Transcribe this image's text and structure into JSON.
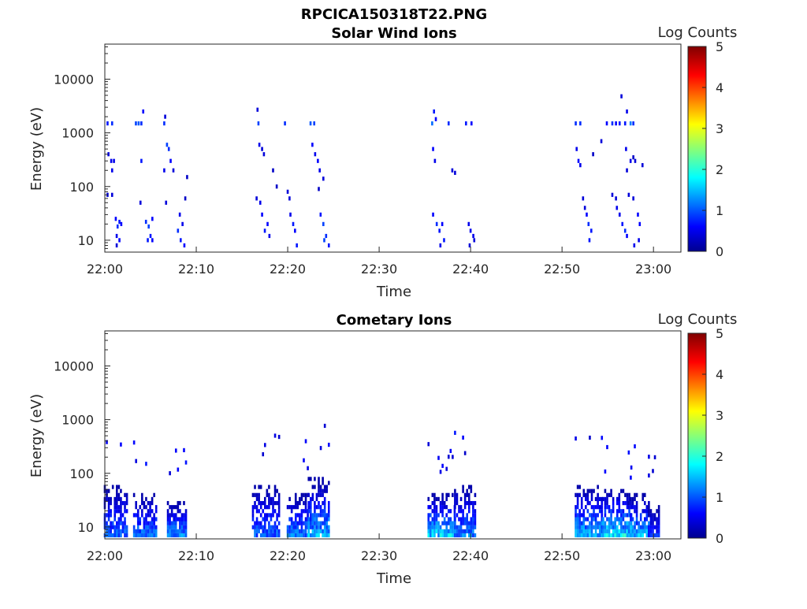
{
  "figure": {
    "filename": "RPCICA150318T22.PNG"
  },
  "chart_data": [
    {
      "type": "heatmap",
      "title": "Solar Wind Ions",
      "xlabel": "Time",
      "ylabel": "Energy (eV)",
      "x_ticks": [
        "22:00",
        "22:10",
        "22:20",
        "22:30",
        "22:40",
        "22:50",
        "23:00"
      ],
      "x_range_minutes": [
        0,
        63
      ],
      "y_ticks": [
        "10",
        "100",
        "1000",
        "10000"
      ],
      "y_scale": "log",
      "y_range": [
        6,
        45000
      ],
      "colorbar": {
        "label": "Log Counts",
        "ticks": [
          "0",
          "1",
          "2",
          "3",
          "4",
          "5"
        ],
        "range": [
          0,
          5
        ],
        "colormap": "jet"
      },
      "data_note_units": "[time (minutes after 22:00), energy (eV), log counts]",
      "points": [
        [
          0.3,
          1500,
          0.7
        ],
        [
          0.8,
          1500,
          0.8
        ],
        [
          0.4,
          400,
          0.4
        ],
        [
          0.7,
          300,
          0.5
        ],
        [
          0.8,
          200,
          0.5
        ],
        [
          0.3,
          70,
          0.4
        ],
        [
          0.8,
          70,
          0.4
        ],
        [
          1.0,
          300,
          0.5
        ],
        [
          1.2,
          25,
          0.6
        ],
        [
          1.4,
          18,
          0.8
        ],
        [
          1.6,
          22,
          0.7
        ],
        [
          1.8,
          20,
          0.6
        ],
        [
          1.3,
          12,
          0.5
        ],
        [
          1.6,
          10,
          0.6
        ],
        [
          1.3,
          8,
          0.4
        ],
        [
          3.4,
          1500,
          0.9
        ],
        [
          3.7,
          1500,
          1.0
        ],
        [
          4.0,
          1500,
          0.8
        ],
        [
          4.2,
          2500,
          0.6
        ],
        [
          4.0,
          300,
          0.7
        ],
        [
          3.9,
          50,
          0.4
        ],
        [
          4.5,
          22,
          0.8
        ],
        [
          4.8,
          18,
          0.9
        ],
        [
          5.0,
          12,
          0.7
        ],
        [
          5.2,
          25,
          0.6
        ],
        [
          4.7,
          10,
          0.7
        ],
        [
          5.2,
          10,
          0.6
        ],
        [
          6.5,
          1500,
          0.8
        ],
        [
          6.6,
          2000,
          0.4
        ],
        [
          6.8,
          600,
          0.9
        ],
        [
          7.0,
          500,
          0.8
        ],
        [
          7.2,
          300,
          0.6
        ],
        [
          6.5,
          200,
          0.5
        ],
        [
          7.5,
          200,
          0.4
        ],
        [
          6.7,
          50,
          0.4
        ],
        [
          8.2,
          30,
          0.5
        ],
        [
          8.0,
          15,
          0.8
        ],
        [
          8.3,
          10,
          0.7
        ],
        [
          8.5,
          20,
          0.5
        ],
        [
          8.7,
          8,
          0.6
        ],
        [
          8.8,
          60,
          0.3
        ],
        [
          9.0,
          150,
          0.3
        ],
        [
          16.7,
          2700,
          0.4
        ],
        [
          16.8,
          1500,
          0.9
        ],
        [
          16.9,
          600,
          0.5
        ],
        [
          17.2,
          500,
          0.4
        ],
        [
          17.4,
          400,
          0.4
        ],
        [
          16.6,
          60,
          0.4
        ],
        [
          17.0,
          50,
          0.5
        ],
        [
          17.2,
          30,
          0.6
        ],
        [
          17.5,
          15,
          0.7
        ],
        [
          17.8,
          20,
          0.6
        ],
        [
          18.0,
          12,
          0.5
        ],
        [
          18.4,
          200,
          0.3
        ],
        [
          18.8,
          100,
          0.3
        ],
        [
          19.7,
          1500,
          0.8
        ],
        [
          20.0,
          80,
          0.4
        ],
        [
          20.2,
          60,
          0.4
        ],
        [
          20.3,
          30,
          0.5
        ],
        [
          20.6,
          20,
          0.7
        ],
        [
          20.8,
          15,
          0.6
        ],
        [
          21.0,
          8,
          0.7
        ],
        [
          22.5,
          1500,
          1.0
        ],
        [
          22.9,
          1500,
          0.9
        ],
        [
          22.7,
          600,
          0.6
        ],
        [
          23.0,
          400,
          0.5
        ],
        [
          23.3,
          300,
          0.6
        ],
        [
          23.5,
          200,
          0.5
        ],
        [
          23.9,
          140,
          0.4
        ],
        [
          23.4,
          90,
          0.3
        ],
        [
          23.6,
          30,
          0.7
        ],
        [
          23.9,
          20,
          0.9
        ],
        [
          24.2,
          12,
          0.8
        ],
        [
          24.5,
          8,
          0.7
        ],
        [
          24.0,
          10,
          0.9
        ],
        [
          35.8,
          1500,
          1.1
        ],
        [
          36.0,
          2500,
          0.7
        ],
        [
          36.2,
          1800,
          0.6
        ],
        [
          35.9,
          500,
          0.6
        ],
        [
          36.1,
          300,
          0.5
        ],
        [
          35.9,
          30,
          0.6
        ],
        [
          36.3,
          20,
          0.8
        ],
        [
          36.6,
          15,
          0.7
        ],
        [
          36.9,
          20,
          0.6
        ],
        [
          37.1,
          10,
          0.7
        ],
        [
          36.7,
          8,
          0.5
        ],
        [
          37.6,
          1500,
          0.8
        ],
        [
          38.0,
          200,
          0.4
        ],
        [
          38.3,
          180,
          0.4
        ],
        [
          39.5,
          1500,
          0.7
        ],
        [
          40.1,
          1500,
          0.6
        ],
        [
          39.8,
          20,
          0.5
        ],
        [
          40.0,
          15,
          0.5
        ],
        [
          40.3,
          12,
          0.5
        ],
        [
          39.9,
          8,
          0.4
        ],
        [
          40.4,
          10,
          0.4
        ],
        [
          51.5,
          1500,
          0.8
        ],
        [
          52.0,
          1500,
          0.8
        ],
        [
          51.6,
          500,
          0.5
        ],
        [
          51.8,
          300,
          0.6
        ],
        [
          52.0,
          250,
          0.5
        ],
        [
          52.3,
          60,
          0.4
        ],
        [
          52.5,
          40,
          0.4
        ],
        [
          52.7,
          30,
          0.6
        ],
        [
          52.9,
          20,
          0.8
        ],
        [
          53.2,
          15,
          0.7
        ],
        [
          53.0,
          10,
          0.7
        ],
        [
          53.4,
          400,
          0.3
        ],
        [
          54.3,
          700,
          0.4
        ],
        [
          54.9,
          1500,
          0.6
        ],
        [
          55.5,
          1500,
          0.8
        ],
        [
          55.9,
          1500,
          0.6
        ],
        [
          56.5,
          4800,
          0.4
        ],
        [
          56.3,
          1500,
          0.7
        ],
        [
          56.9,
          1500,
          0.7
        ],
        [
          57.1,
          2500,
          0.5
        ],
        [
          55.5,
          70,
          0.4
        ],
        [
          55.9,
          60,
          0.4
        ],
        [
          56.0,
          40,
          0.5
        ],
        [
          56.3,
          30,
          0.5
        ],
        [
          56.6,
          20,
          0.7
        ],
        [
          56.9,
          15,
          0.8
        ],
        [
          57.1,
          12,
          0.6
        ],
        [
          57.5,
          1500,
          1.2
        ],
        [
          57.8,
          1500,
          0.8
        ],
        [
          57.5,
          300,
          0.5
        ],
        [
          58.0,
          300,
          0.4
        ],
        [
          57.0,
          500,
          0.5
        ],
        [
          57.3,
          70,
          0.4
        ],
        [
          57.8,
          60,
          0.4
        ],
        [
          58.3,
          30,
          0.6
        ],
        [
          58.5,
          20,
          0.6
        ],
        [
          58.4,
          10,
          0.5
        ],
        [
          57.9,
          8,
          0.5
        ],
        [
          58.8,
          250,
          0.4
        ],
        [
          57.1,
          200,
          0.4
        ],
        [
          57.8,
          350,
          0.3
        ]
      ]
    },
    {
      "type": "heatmap",
      "title": "Cometary Ions",
      "xlabel": "Time",
      "ylabel": "Energy (eV)",
      "x_ticks": [
        "22:00",
        "22:10",
        "22:20",
        "22:30",
        "22:40",
        "22:50",
        "23:00"
      ],
      "x_range_minutes": [
        0,
        63
      ],
      "y_ticks": [
        "10",
        "100",
        "1000",
        "10000"
      ],
      "y_scale": "log",
      "y_range": [
        6,
        45000
      ],
      "colorbar": {
        "label": "Log Counts",
        "ticks": [
          "0",
          "1",
          "2",
          "3",
          "4",
          "5"
        ],
        "range": [
          0,
          5
        ],
        "colormap": "jet"
      },
      "data_note_units": "[time (minutes after 22:00), energy (eV), log counts]",
      "bursts": [
        [
          0.0,
          2.5,
          1.2,
          60
        ],
        [
          3.2,
          5.7,
          1.3,
          40
        ],
        [
          6.9,
          9.1,
          1.4,
          30
        ],
        [
          16.2,
          19.2,
          1.2,
          60
        ],
        [
          20.0,
          22.3,
          1.4,
          40
        ],
        [
          22.3,
          24.7,
          1.6,
          80
        ],
        [
          35.4,
          38.3,
          1.8,
          40
        ],
        [
          38.3,
          40.6,
          1.3,
          60
        ],
        [
          51.5,
          54.5,
          1.6,
          60
        ],
        [
          54.5,
          57.7,
          1.9,
          50
        ],
        [
          57.3,
          59.5,
          1.6,
          40
        ],
        [
          59.5,
          60.8,
          0.9,
          25
        ]
      ]
    }
  ]
}
